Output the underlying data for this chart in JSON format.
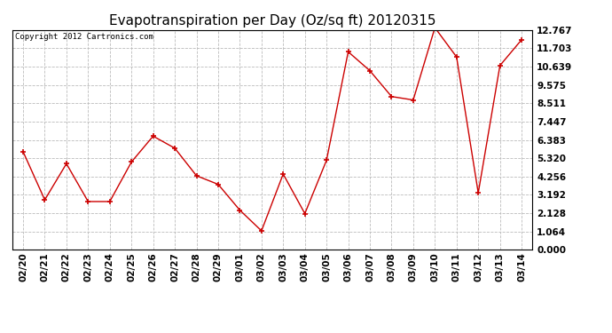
{
  "title": "Evapotranspiration per Day (Oz/sq ft) 20120315",
  "copyright": "Copyright 2012 Cartronics.com",
  "dates": [
    "02/20",
    "02/21",
    "02/22",
    "02/23",
    "02/24",
    "02/25",
    "02/26",
    "02/27",
    "02/28",
    "02/29",
    "03/01",
    "03/02",
    "03/03",
    "03/04",
    "03/05",
    "03/06",
    "03/07",
    "03/08",
    "03/09",
    "03/10",
    "03/11",
    "03/12",
    "03/13",
    "03/14"
  ],
  "values": [
    5.7,
    2.9,
    5.0,
    2.8,
    2.8,
    5.1,
    6.6,
    5.9,
    4.3,
    3.8,
    2.3,
    1.1,
    4.4,
    2.1,
    5.2,
    11.5,
    10.4,
    8.9,
    8.7,
    12.9,
    11.2,
    3.3,
    10.7,
    12.2
  ],
  "yticks": [
    0.0,
    1.064,
    2.128,
    3.192,
    4.256,
    5.32,
    6.383,
    7.447,
    8.511,
    9.575,
    10.639,
    11.703,
    12.767
  ],
  "line_color": "#cc0000",
  "marker_color": "#cc0000",
  "bg_color": "#ffffff",
  "grid_color": "#bbbbbb",
  "title_fontsize": 11,
  "copyright_fontsize": 6.5,
  "tick_fontsize": 7.5,
  "ylim": [
    0.0,
    12.767
  ],
  "marker": "+",
  "marker_size": 5,
  "linewidth": 1.0
}
